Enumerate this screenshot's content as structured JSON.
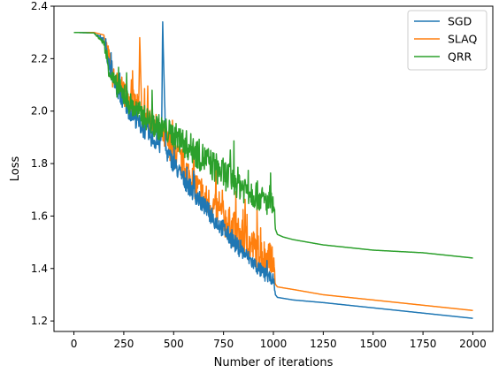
{
  "chart_data": {
    "type": "line",
    "xlabel": "Number of iterations",
    "ylabel": "Loss",
    "xlim": [
      -100,
      2100
    ],
    "ylim": [
      1.16,
      2.4
    ],
    "xticks": [
      0,
      250,
      500,
      750,
      1000,
      1250,
      1500,
      1750,
      2000
    ],
    "yticks": [
      1.2,
      1.4,
      1.6,
      1.8,
      2.0,
      2.2,
      2.4
    ],
    "xtick_labels": [
      "0",
      "250",
      "500",
      "750",
      "1000",
      "1250",
      "1500",
      "1750",
      "2000"
    ],
    "ytick_labels": [
      "1.2",
      "1.4",
      "1.6",
      "1.8",
      "2.0",
      "2.2",
      "2.4"
    ],
    "grid": false,
    "legend_position": "top-right",
    "series": [
      {
        "name": "SGD",
        "color": "#1f77b4",
        "x": [
          0,
          100,
          150,
          175,
          200,
          250,
          300,
          350,
          400,
          430,
          440,
          445,
          460,
          500,
          550,
          600,
          650,
          700,
          750,
          800,
          850,
          900,
          950,
          990,
          1000,
          1010,
          1020,
          1100,
          1250,
          1500,
          1750,
          2000
        ],
        "y": [
          2.3,
          2.298,
          2.27,
          2.18,
          2.11,
          2.03,
          1.98,
          1.93,
          1.89,
          1.87,
          1.93,
          2.34,
          1.85,
          1.8,
          1.74,
          1.69,
          1.64,
          1.59,
          1.55,
          1.5,
          1.46,
          1.42,
          1.38,
          1.36,
          1.36,
          1.3,
          1.29,
          1.28,
          1.27,
          1.25,
          1.23,
          1.21
        ],
        "noise": [
          0,
          0,
          0.01,
          0.03,
          0.03,
          0.035,
          0.035,
          0.035,
          0.035,
          0.035,
          0.04,
          0.04,
          0.035,
          0.035,
          0.035,
          0.035,
          0.035,
          0.035,
          0.035,
          0.035,
          0.03,
          0.03,
          0.03,
          0.02,
          0.02,
          0,
          0,
          0,
          0,
          0,
          0,
          0
        ]
      },
      {
        "name": "SLAQ",
        "color": "#ff7f0e",
        "x": [
          0,
          100,
          150,
          170,
          185,
          200,
          250,
          300,
          325,
          330,
          340,
          400,
          450,
          500,
          550,
          600,
          650,
          700,
          750,
          800,
          850,
          900,
          950,
          990,
          1000,
          1010,
          1020,
          1100,
          1250,
          1500,
          1750,
          2000
        ],
        "y": [
          2.3,
          2.3,
          2.29,
          2.23,
          2.16,
          2.12,
          2.07,
          2.03,
          2.01,
          2.28,
          1.99,
          1.95,
          1.9,
          1.85,
          1.79,
          1.73,
          1.67,
          1.63,
          1.59,
          1.55,
          1.51,
          1.48,
          1.45,
          1.43,
          1.43,
          1.34,
          1.33,
          1.32,
          1.3,
          1.28,
          1.26,
          1.24
        ],
        "noise": [
          0,
          0,
          0,
          0.03,
          0.05,
          0.05,
          0.05,
          0.05,
          0.05,
          0.05,
          0.05,
          0.05,
          0.05,
          0.06,
          0.06,
          0.06,
          0.06,
          0.07,
          0.07,
          0.07,
          0.07,
          0.07,
          0.07,
          0.06,
          0.06,
          0,
          0,
          0,
          0,
          0,
          0,
          0
        ]
      },
      {
        "name": "QRR",
        "color": "#2ca02c",
        "x": [
          0,
          100,
          150,
          175,
          200,
          250,
          300,
          350,
          400,
          450,
          500,
          550,
          600,
          650,
          700,
          750,
          800,
          850,
          900,
          950,
          990,
          1000,
          1010,
          1020,
          1050,
          1100,
          1250,
          1500,
          1750,
          2000
        ],
        "y": [
          2.3,
          2.298,
          2.26,
          2.16,
          2.11,
          2.06,
          2.01,
          1.98,
          1.95,
          1.93,
          1.91,
          1.88,
          1.85,
          1.82,
          1.79,
          1.76,
          1.74,
          1.71,
          1.69,
          1.66,
          1.64,
          1.64,
          1.55,
          1.53,
          1.52,
          1.51,
          1.49,
          1.47,
          1.46,
          1.44
        ],
        "noise": [
          0,
          0,
          0.01,
          0.03,
          0.04,
          0.045,
          0.045,
          0.045,
          0.05,
          0.05,
          0.05,
          0.055,
          0.06,
          0.06,
          0.06,
          0.06,
          0.06,
          0.06,
          0.06,
          0.05,
          0.05,
          0.05,
          0,
          0,
          0,
          0,
          0,
          0,
          0,
          0
        ]
      }
    ]
  }
}
